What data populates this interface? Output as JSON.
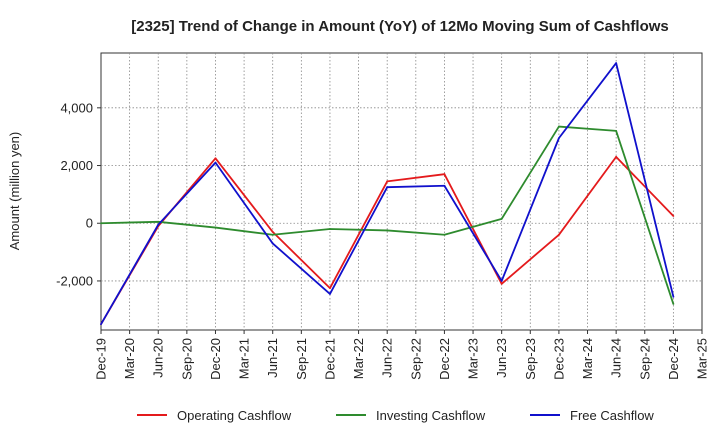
{
  "chart_data": {
    "type": "line",
    "title": "[2325]  Trend of Change in Amount (YoY) of 12Mo Moving Sum of Cashflows",
    "xlabel": "",
    "ylabel": "Amount (million yen)",
    "ylim": [
      -3700,
      5900
    ],
    "yticks": [
      -2000,
      0,
      2000,
      4000
    ],
    "ytick_labels": [
      "-2,000",
      "0",
      "2,000",
      "4,000"
    ],
    "categories": [
      "Dec-19",
      "Mar-20",
      "Jun-20",
      "Sep-20",
      "Dec-20",
      "Mar-21",
      "Jun-21",
      "Sep-21",
      "Dec-21",
      "Mar-22",
      "Jun-22",
      "Sep-22",
      "Dec-22",
      "Mar-23",
      "Jun-23",
      "Sep-23",
      "Dec-23",
      "Mar-24",
      "Jun-24",
      "Sep-24",
      "Dec-24",
      "Mar-25"
    ],
    "grid": true,
    "legend_position": "bottom",
    "series": [
      {
        "name": "Operating Cashflow",
        "color": "#e41a1c",
        "values": [
          -3500,
          null,
          -100,
          null,
          2250,
          null,
          -300,
          null,
          -2250,
          null,
          1450,
          null,
          1700,
          null,
          -2100,
          null,
          -400,
          null,
          2300,
          null,
          250,
          null
        ]
      },
      {
        "name": "Investing Cashflow",
        "color": "#2e8b2e",
        "values": [
          0,
          null,
          50,
          null,
          -150,
          null,
          -400,
          null,
          -200,
          null,
          -250,
          null,
          -400,
          null,
          150,
          null,
          3350,
          null,
          3200,
          null,
          -2800,
          null
        ]
      },
      {
        "name": "Free Cashflow",
        "color": "#1010cc",
        "values": [
          -3500,
          null,
          -50,
          null,
          2100,
          null,
          -700,
          null,
          -2450,
          null,
          1250,
          null,
          1300,
          null,
          -2000,
          null,
          2950,
          null,
          5550,
          null,
          -2550,
          null
        ]
      }
    ]
  }
}
